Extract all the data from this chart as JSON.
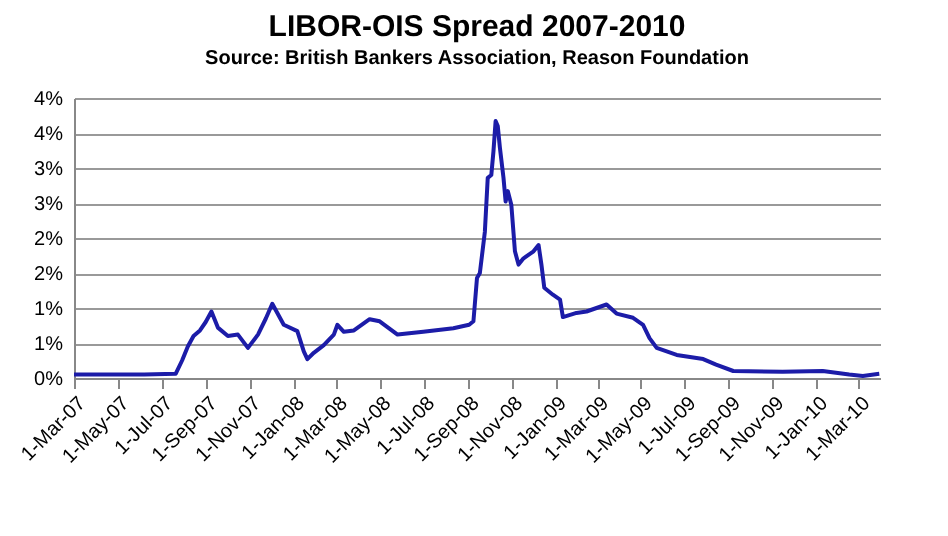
{
  "chart_data": {
    "type": "line",
    "title": "LIBOR-OIS Spread 2007-2010",
    "subtitle": "Source: British Bankers Association, Reason Foundation",
    "x": [
      "2007-03-01",
      "2007-06-07",
      "2007-07-21",
      "2007-07-30",
      "2007-08-07",
      "2007-08-15",
      "2007-08-24",
      "2007-09-01",
      "2007-09-09",
      "2007-09-18",
      "2007-10-02",
      "2007-10-16",
      "2007-10-30",
      "2007-11-13",
      "2007-11-24",
      "2007-12-03",
      "2007-12-19",
      "2008-01-07",
      "2008-01-16",
      "2008-01-21",
      "2008-01-30",
      "2008-02-13",
      "2008-02-27",
      "2008-03-03",
      "2008-03-12",
      "2008-03-26",
      "2008-04-17",
      "2008-05-01",
      "2008-05-26",
      "2008-07-01",
      "2008-08-12",
      "2008-09-03",
      "2008-09-09",
      "2008-09-14",
      "2008-09-18",
      "2008-09-25",
      "2008-09-29",
      "2008-10-04",
      "2008-10-07",
      "2008-10-10",
      "2008-10-13",
      "2008-10-16",
      "2008-10-21",
      "2008-10-24",
      "2008-10-27",
      "2008-11-01",
      "2008-11-06",
      "2008-11-11",
      "2008-11-18",
      "2008-12-02",
      "2008-12-09",
      "2008-12-13",
      "2008-12-17",
      "2008-12-29",
      "2009-01-08",
      "2009-01-12",
      "2009-01-31",
      "2009-02-14",
      "2009-03-14",
      "2009-03-28",
      "2009-04-20",
      "2009-05-04",
      "2009-05-13",
      "2009-05-23",
      "2009-06-20",
      "2009-07-27",
      "2009-08-14",
      "2009-09-07",
      "2009-11-15",
      "2010-01-10",
      "2010-02-16",
      "2010-03-07",
      "2010-03-30"
    ],
    "series": [
      {
        "color": "#1c1ca8",
        "values": [
          0.05,
          0.05,
          0.06,
          0.25,
          0.45,
          0.6,
          0.68,
          0.8,
          0.95,
          0.72,
          0.6,
          0.62,
          0.43,
          0.62,
          0.85,
          1.06,
          0.76,
          0.67,
          0.38,
          0.27,
          0.36,
          0.47,
          0.62,
          0.76,
          0.66,
          0.68,
          0.84,
          0.81,
          0.62,
          0.66,
          0.71,
          0.76,
          0.81,
          1.43,
          1.5,
          2.09,
          2.86,
          2.9,
          3.24,
          3.67,
          3.6,
          3.29,
          2.86,
          2.52,
          2.67,
          2.47,
          1.81,
          1.62,
          1.71,
          1.81,
          1.9,
          1.62,
          1.29,
          1.19,
          1.12,
          0.87,
          0.93,
          0.95,
          1.05,
          0.92,
          0.86,
          0.76,
          0.57,
          0.43,
          0.33,
          0.27,
          0.19,
          0.1,
          0.09,
          0.1,
          0.05,
          0.03,
          0.06
        ]
      }
    ],
    "xlim": [
      "2007-03-01",
      "2010-03-31"
    ],
    "xticks": [
      {
        "value": "2007-03-01",
        "label": "1-Mar-07"
      },
      {
        "value": "2007-05-01",
        "label": "1-May-07"
      },
      {
        "value": "2007-07-01",
        "label": "1-Jul-07"
      },
      {
        "value": "2007-09-01",
        "label": "1-Sep-07"
      },
      {
        "value": "2007-11-01",
        "label": "1-Nov-07"
      },
      {
        "value": "2008-01-01",
        "label": "1-Jan-08"
      },
      {
        "value": "2008-03-01",
        "label": "1-Mar-08"
      },
      {
        "value": "2008-05-01",
        "label": "1-May-08"
      },
      {
        "value": "2008-07-01",
        "label": "1-Jul-08"
      },
      {
        "value": "2008-09-01",
        "label": "1-Sep-08"
      },
      {
        "value": "2008-11-01",
        "label": "1-Nov-08"
      },
      {
        "value": "2009-01-01",
        "label": "1-Jan-09"
      },
      {
        "value": "2009-03-01",
        "label": "1-Mar-09"
      },
      {
        "value": "2009-05-01",
        "label": "1-May-09"
      },
      {
        "value": "2009-07-01",
        "label": "1-Jul-09"
      },
      {
        "value": "2009-09-01",
        "label": "1-Sep-09"
      },
      {
        "value": "2009-11-01",
        "label": "1-Nov-09"
      },
      {
        "value": "2010-01-01",
        "label": "1-Jan-10"
      },
      {
        "value": "2010-03-01",
        "label": "1-Mar-10"
      }
    ],
    "ylim": [
      0,
      4
    ],
    "yticks": [
      {
        "value": 0,
        "label": "0%"
      },
      {
        "value": 0.5,
        "label": "1%"
      },
      {
        "value": 1,
        "label": "1%"
      },
      {
        "value": 1.5,
        "label": "2%"
      },
      {
        "value": 2,
        "label": "2%"
      },
      {
        "value": 2.5,
        "label": "3%"
      },
      {
        "value": 3,
        "label": "3%"
      },
      {
        "value": 3.5,
        "label": "4%"
      },
      {
        "value": 4,
        "label": "4%"
      }
    ],
    "grid": "y",
    "legend": false
  }
}
